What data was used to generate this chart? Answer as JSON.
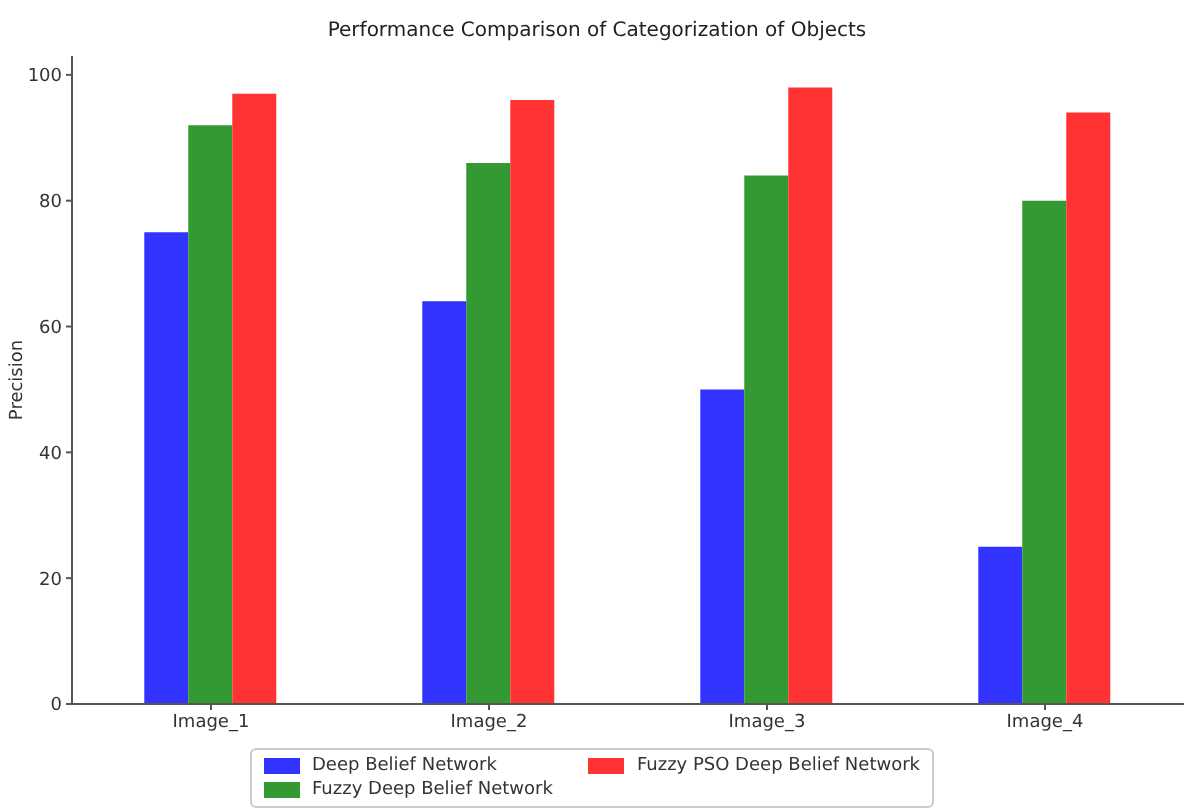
{
  "chart_data": {
    "type": "bar",
    "title": "Performance Comparison of Categorization of Objects",
    "ylabel": "Precision",
    "categories": [
      "Image_1",
      "Image_2",
      "Image_3",
      "Image_4"
    ],
    "series": [
      {
        "name": "Deep Belief Network",
        "color": "#3333ff",
        "values": [
          75,
          64,
          50,
          25
        ]
      },
      {
        "name": "Fuzzy Deep Belief Network",
        "color": "#339933",
        "values": [
          92,
          86,
          84,
          80
        ]
      },
      {
        "name": "Fuzzy PSO Deep Belief Network",
        "color": "#ff3333",
        "values": [
          97,
          96,
          98,
          94
        ]
      }
    ],
    "ylim": [
      0,
      103
    ],
    "yticks": [
      0,
      20,
      40,
      60,
      80,
      100
    ],
    "grid": false,
    "legend": "bottom"
  }
}
